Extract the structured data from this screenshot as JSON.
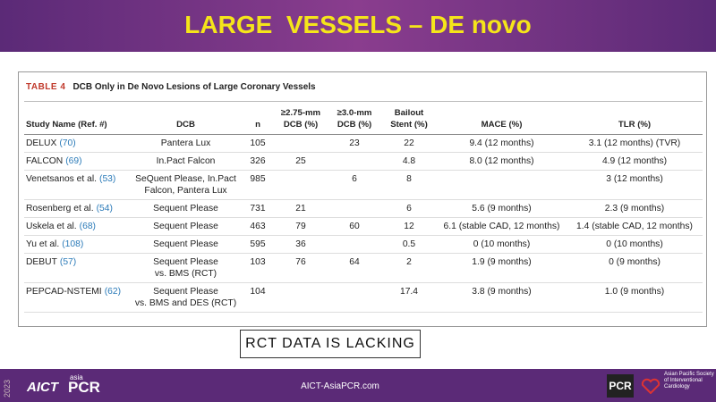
{
  "header": {
    "title": "LARGE  VESSELS – DE novo"
  },
  "table": {
    "label": "TABLE 4",
    "caption": "DCB Only in De Novo Lesions of Large Coronary Vessels",
    "columns": [
      "Study Name (Ref. #)",
      "DCB",
      "n",
      [
        "≥2.75-mm",
        "DCB (%)"
      ],
      [
        "≥3.0-mm",
        "DCB (%)"
      ],
      [
        "Bailout",
        "Stent (%)"
      ],
      "MACE (%)",
      "TLR (%)"
    ],
    "rows": [
      [
        {
          "name": "DELUX",
          "ref": "(70)"
        },
        "Pantera Lux",
        105,
        null,
        23,
        22,
        "9.4 (12 months)",
        "3.1 (12 months) (TVR)"
      ],
      [
        {
          "name": "FALCON",
          "ref": "(69)"
        },
        "In.Pact Falcon",
        326,
        25,
        null,
        4.8,
        "8.0 (12 months)",
        "4.9 (12 months)"
      ],
      [
        {
          "name": "Venetsanos et al.",
          "ref": "(53)"
        },
        [
          "SeQuent Please, In.Pact",
          "Falcon, Pantera Lux"
        ],
        985,
        null,
        6,
        8,
        null,
        "3 (12 months)"
      ],
      [
        {
          "name": "Rosenberg et al.",
          "ref": "(54)"
        },
        "Sequent Please",
        731,
        21,
        null,
        6,
        "5.6 (9 months)",
        "2.3 (9 months)"
      ],
      [
        {
          "name": "Uskela et al.",
          "ref": "(68)"
        },
        "Sequent Please",
        463,
        79,
        60,
        12,
        "6.1 (stable CAD, 12 months)",
        "1.4 (stable CAD, 12 months)"
      ],
      [
        {
          "name": "Yu et al.",
          "ref": "(108)"
        },
        "Sequent Please",
        595,
        36,
        null,
        0.5,
        "0 (10 months)",
        "0 (10 months)"
      ],
      [
        {
          "name": "DEBUT",
          "ref": "(57)"
        },
        [
          "Sequent Please",
          "vs. BMS (RCT)"
        ],
        103,
        76,
        64,
        2,
        "1.9 (9 months)",
        "0 (9 months)"
      ],
      [
        {
          "name": "PEPCAD-NSTEMI",
          "ref": "(62)"
        },
        [
          "Sequent Please",
          "vs. BMS and DES (RCT)"
        ],
        104,
        null,
        null,
        17.4,
        "3.8 (9 months)",
        "1.0 (9 months)"
      ]
    ]
  },
  "note": "RCT DATA IS LACKING",
  "footer": {
    "year": "2023",
    "logo_left": "AICT",
    "logo_small": "asia",
    "logo_pcr": "PCR",
    "url": "AICT-AsiaPCR.com",
    "logo_right": "PCR",
    "society": "Asian Pacific Society of Interventional Cardiology"
  }
}
